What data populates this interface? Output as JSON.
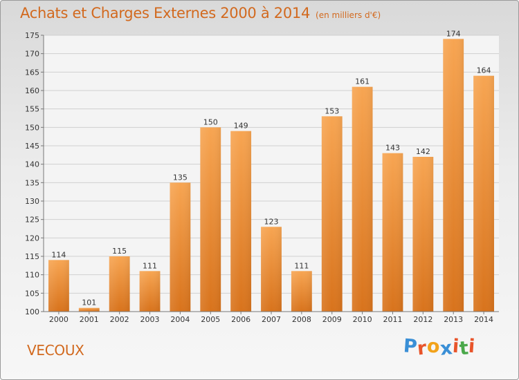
{
  "title": "Achats et Charges Externes 2000 à 2014",
  "subtitle": "(en milliers d'€)",
  "commune": "VECOUX",
  "logo": {
    "text": "Proxiti",
    "letter_colors": [
      "#3a8fd6",
      "#e8542a",
      "#f2a21a",
      "#3a8fd6",
      "#e8542a",
      "#4aa84a",
      "#e8542a"
    ]
  },
  "chart_data": {
    "type": "bar",
    "categories": [
      "2000",
      "2001",
      "2002",
      "2003",
      "2004",
      "2005",
      "2006",
      "2007",
      "2008",
      "2009",
      "2010",
      "2011",
      "2012",
      "2013",
      "2014"
    ],
    "values": [
      114,
      101,
      115,
      111,
      135,
      150,
      149,
      123,
      111,
      153,
      161,
      143,
      142,
      174,
      164
    ],
    "ylim": [
      100,
      175
    ],
    "yticks": [
      100,
      105,
      110,
      115,
      120,
      125,
      130,
      135,
      140,
      145,
      150,
      155,
      160,
      165,
      170,
      175
    ],
    "grid": true,
    "bar_color": "#f08c28"
  }
}
